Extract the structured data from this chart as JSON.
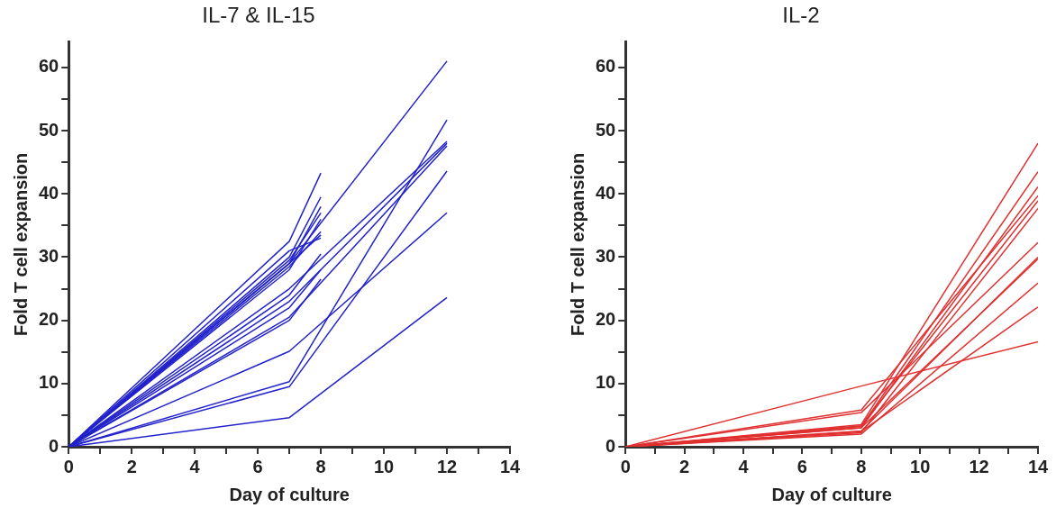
{
  "chart_data": [
    {
      "type": "line",
      "title": "IL-7 & IL-15",
      "xlabel": "Day of culture",
      "ylabel": "Fold T cell expansion",
      "xlim": [
        0,
        14
      ],
      "ylim": [
        0,
        64
      ],
      "xticks": [
        0,
        {
          "value": 1,
          "label": null
        },
        2,
        {
          "value": 3,
          "label": null
        },
        4,
        {
          "value": 5,
          "label": null
        },
        6,
        {
          "value": 7,
          "label": null
        },
        8,
        {
          "value": 9,
          "label": null
        },
        10,
        {
          "value": 11,
          "label": null
        },
        12,
        {
          "value": 13,
          "label": null
        },
        14
      ],
      "yticks": [
        0,
        {
          "value": 5,
          "label": null
        },
        10,
        {
          "value": 15,
          "label": null
        },
        20,
        {
          "value": 25,
          "label": null
        },
        30,
        {
          "value": 35,
          "label": null
        },
        40,
        {
          "value": 45,
          "label": null
        },
        50,
        {
          "value": 55,
          "label": null
        },
        60
      ],
      "grid": false,
      "legend": false,
      "marker": "none",
      "series": [
        {
          "color": "#2222cc",
          "x": [
            0,
            7,
            12
          ],
          "values": [
            0,
            29,
            61
          ]
        },
        {
          "color": "#2222cc",
          "x": [
            0,
            7,
            12
          ],
          "values": [
            0,
            4.6,
            23.6
          ]
        },
        {
          "color": "#2222cc",
          "x": [
            0,
            7,
            12
          ],
          "values": [
            0,
            15.1,
            37
          ]
        },
        {
          "color": "#2222cc",
          "x": [
            0,
            7,
            12
          ],
          "values": [
            0,
            9.5,
            43.6
          ]
        },
        {
          "color": "#2222cc",
          "x": [
            0,
            7,
            12
          ],
          "values": [
            0,
            10.3,
            51.7
          ]
        },
        {
          "color": "#2222cc",
          "x": [
            0,
            7,
            12
          ],
          "values": [
            0,
            25,
            48.3
          ]
        },
        {
          "color": "#2222cc",
          "x": [
            0,
            7,
            12
          ],
          "values": [
            0,
            23,
            48
          ]
        },
        {
          "color": "#2222cc",
          "x": [
            0,
            7,
            12
          ],
          "values": [
            0,
            20.5,
            47.6
          ]
        },
        {
          "color": "#2222cc",
          "x": [
            0,
            7,
            8
          ],
          "values": [
            0,
            32.5,
            43.3
          ]
        },
        {
          "color": "#2222cc",
          "x": [
            0,
            7,
            8
          ],
          "values": [
            0,
            30,
            39.5
          ]
        },
        {
          "color": "#2222cc",
          "x": [
            0,
            7,
            8
          ],
          "values": [
            0,
            29,
            38
          ]
        },
        {
          "color": "#2222cc",
          "x": [
            0,
            7,
            8
          ],
          "values": [
            0,
            29.5,
            37
          ]
        },
        {
          "color": "#2222cc",
          "x": [
            0,
            7,
            8
          ],
          "values": [
            0,
            28,
            36
          ]
        },
        {
          "color": "#2222cc",
          "x": [
            0,
            7,
            8
          ],
          "values": [
            0,
            28.5,
            34
          ]
        },
        {
          "color": "#2222cc",
          "x": [
            0,
            7,
            8
          ],
          "values": [
            0,
            29,
            33.5
          ]
        },
        {
          "color": "#2222cc",
          "x": [
            0,
            7,
            8
          ],
          "values": [
            0,
            31,
            33
          ]
        },
        {
          "color": "#2222cc",
          "x": [
            0,
            7,
            8
          ],
          "values": [
            0,
            24,
            30.5
          ]
        },
        {
          "color": "#2222cc",
          "x": [
            0,
            7,
            8
          ],
          "values": [
            0,
            22,
            28
          ]
        },
        {
          "color": "#2222cc",
          "x": [
            0,
            7,
            8
          ],
          "values": [
            0,
            20,
            26.5
          ]
        }
      ]
    },
    {
      "type": "line",
      "title": "IL-2",
      "xlabel": "Day of culture",
      "ylabel": "Fold T cell expansion",
      "xlim": [
        0,
        14
      ],
      "ylim": [
        0,
        64
      ],
      "xticks": [
        0,
        {
          "value": 1,
          "label": null
        },
        2,
        {
          "value": 3,
          "label": null
        },
        4,
        {
          "value": 5,
          "label": null
        },
        6,
        {
          "value": 7,
          "label": null
        },
        8,
        {
          "value": 9,
          "label": null
        },
        10,
        {
          "value": 11,
          "label": null
        },
        12,
        {
          "value": 13,
          "label": null
        },
        14
      ],
      "yticks": [
        0,
        {
          "value": 5,
          "label": null
        },
        10,
        {
          "value": 15,
          "label": null
        },
        20,
        {
          "value": 25,
          "label": null
        },
        30,
        {
          "value": 35,
          "label": null
        },
        40,
        {
          "value": 45,
          "label": null
        },
        50,
        {
          "value": 55,
          "label": null
        },
        60
      ],
      "grid": false,
      "legend": false,
      "marker": "none",
      "series": [
        {
          "color": "#e03030",
          "x": [
            0,
            8,
            14
          ],
          "values": [
            0,
            9.6,
            16.6
          ]
        },
        {
          "color": "#e03030",
          "x": [
            0,
            8,
            14
          ],
          "values": [
            0,
            3.5,
            48
          ]
        },
        {
          "color": "#e03030",
          "x": [
            0,
            8,
            14
          ],
          "values": [
            0,
            3.2,
            43.5
          ]
        },
        {
          "color": "#e03030",
          "x": [
            0,
            8,
            14
          ],
          "values": [
            0,
            3,
            41.1
          ]
        },
        {
          "color": "#e03030",
          "x": [
            0,
            8,
            14
          ],
          "values": [
            0,
            5.8,
            39.7
          ]
        },
        {
          "color": "#e03030",
          "x": [
            0,
            8,
            14
          ],
          "values": [
            0,
            3.3,
            38.9
          ]
        },
        {
          "color": "#e03030",
          "x": [
            0,
            8,
            14
          ],
          "values": [
            0,
            2.2,
            37.7
          ]
        },
        {
          "color": "#e03030",
          "x": [
            0,
            8,
            14
          ],
          "values": [
            0,
            5.4,
            32.3
          ]
        },
        {
          "color": "#e03030",
          "x": [
            0,
            8,
            14
          ],
          "values": [
            0,
            2.5,
            30
          ]
        },
        {
          "color": "#e03030",
          "x": [
            0,
            8,
            14
          ],
          "values": [
            0,
            3,
            29.7
          ]
        },
        {
          "color": "#e03030",
          "x": [
            0,
            8,
            14
          ],
          "values": [
            0,
            2,
            25.9
          ]
        },
        {
          "color": "#e03030",
          "x": [
            0,
            8,
            14
          ],
          "values": [
            0,
            2.4,
            22.1
          ]
        }
      ]
    }
  ]
}
